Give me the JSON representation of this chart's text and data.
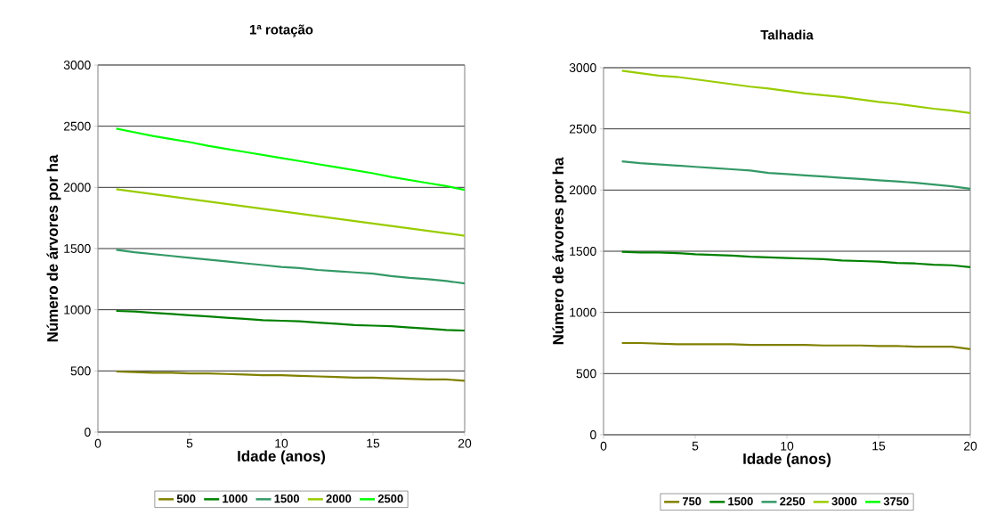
{
  "chart_data": [
    {
      "type": "line",
      "title": "1ª rotação",
      "xlabel": "Idade (anos)",
      "ylabel": "Número de árvores por ha",
      "x": [
        1,
        2,
        3,
        4,
        5,
        6,
        7,
        8,
        9,
        10,
        11,
        12,
        13,
        14,
        15,
        16,
        17,
        18,
        19,
        20
      ],
      "series": [
        {
          "name": "500",
          "color": "#808000",
          "values": [
            495,
            490,
            485,
            485,
            480,
            480,
            475,
            470,
            465,
            465,
            460,
            455,
            450,
            445,
            445,
            440,
            435,
            430,
            430,
            420
          ]
        },
        {
          "name": "1000",
          "color": "#008000",
          "values": [
            990,
            985,
            975,
            965,
            955,
            945,
            935,
            925,
            915,
            910,
            905,
            895,
            885,
            875,
            870,
            865,
            855,
            845,
            835,
            830
          ]
        },
        {
          "name": "1500",
          "color": "#339966",
          "values": [
            1490,
            1470,
            1455,
            1440,
            1425,
            1410,
            1395,
            1380,
            1365,
            1350,
            1340,
            1325,
            1315,
            1305,
            1295,
            1275,
            1260,
            1250,
            1235,
            1215
          ]
        },
        {
          "name": "2000",
          "color": "#99cc00",
          "values": [
            1985,
            1965,
            1945,
            1925,
            1905,
            1885,
            1865,
            1845,
            1825,
            1805,
            1785,
            1765,
            1745,
            1725,
            1705,
            1685,
            1665,
            1645,
            1625,
            1605
          ]
        },
        {
          "name": "2500",
          "color": "#00ff00",
          "values": [
            2480,
            2450,
            2420,
            2395,
            2370,
            2340,
            2315,
            2290,
            2265,
            2240,
            2215,
            2190,
            2165,
            2140,
            2115,
            2085,
            2060,
            2035,
            2010,
            1980
          ]
        }
      ],
      "xlim": [
        0,
        20
      ],
      "ylim": [
        0,
        3000
      ],
      "xticks": [
        0,
        5,
        10,
        15,
        20
      ],
      "yticks": [
        0,
        500,
        1000,
        1500,
        2000,
        2500,
        3000
      ],
      "grid": "y",
      "legend": "bottom"
    },
    {
      "type": "line",
      "title": "Talhadia",
      "xlabel": "Idade (anos)",
      "ylabel": "Número de árvores por ha",
      "x": [
        1,
        2,
        3,
        4,
        5,
        6,
        7,
        8,
        9,
        10,
        11,
        12,
        13,
        14,
        15,
        16,
        17,
        18,
        19,
        20
      ],
      "series": [
        {
          "name": "750",
          "color": "#808000",
          "values": [
            750,
            750,
            745,
            740,
            740,
            740,
            740,
            735,
            735,
            735,
            735,
            730,
            730,
            730,
            725,
            725,
            720,
            720,
            720,
            700
          ]
        },
        {
          "name": "1500",
          "color": "#008000",
          "values": [
            1495,
            1490,
            1490,
            1485,
            1475,
            1470,
            1465,
            1455,
            1450,
            1445,
            1440,
            1435,
            1425,
            1420,
            1415,
            1405,
            1400,
            1390,
            1385,
            1370
          ]
        },
        {
          "name": "2250",
          "color": "#339966",
          "values": [
            2235,
            2220,
            2210,
            2200,
            2190,
            2180,
            2170,
            2160,
            2140,
            2130,
            2120,
            2110,
            2100,
            2090,
            2080,
            2070,
            2060,
            2045,
            2030,
            2010
          ]
        },
        {
          "name": "3000",
          "color": "#99cc00",
          "values": [
            2975,
            2955,
            2935,
            2925,
            2905,
            2885,
            2865,
            2845,
            2830,
            2810,
            2790,
            2775,
            2760,
            2740,
            2720,
            2705,
            2685,
            2665,
            2650,
            2630
          ]
        },
        {
          "name": "3750",
          "color": "#00ff00",
          "values": [
            null,
            null,
            null,
            null,
            null,
            null,
            null,
            null,
            null,
            null,
            null,
            null,
            null,
            null,
            null,
            null,
            null,
            null,
            null,
            null
          ]
        }
      ],
      "xlim": [
        0,
        20
      ],
      "ylim": [
        0,
        3000
      ],
      "xticks": [
        0,
        5,
        10,
        15,
        20
      ],
      "yticks": [
        0,
        500,
        1000,
        1500,
        2000,
        2500,
        3000
      ],
      "grid": "y",
      "legend": "bottom"
    }
  ]
}
